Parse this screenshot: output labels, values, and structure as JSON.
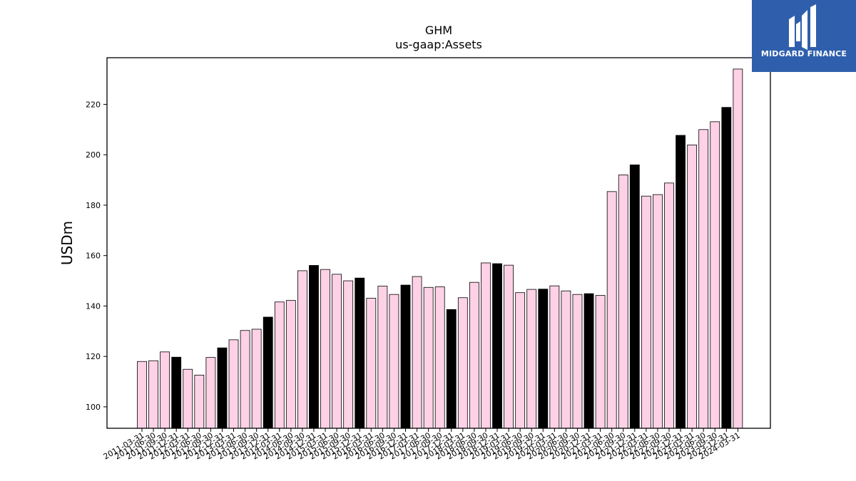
{
  "chart_data": {
    "type": "bar",
    "title": "GHM",
    "subtitle": "us-gaap:Assets",
    "xlabel": "",
    "ylabel": "USDm",
    "ylim": [
      91.5,
      238.5
    ],
    "yticks": [
      100,
      120,
      140,
      160,
      180,
      200,
      220
    ],
    "grid": false,
    "legend": "none",
    "colors": {
      "quarter": "#ffd1e6",
      "year_end": "#000000",
      "edge": "#000000"
    },
    "categories": [
      "2011-03-31",
      "2011-06-30",
      "2011-09-30",
      "2011-12-31",
      "2012-03-31",
      "2012-06-30",
      "2012-09-30",
      "2012-12-31",
      "2013-03-31",
      "2013-06-30",
      "2013-09-30",
      "2013-12-31",
      "2014-03-31",
      "2014-06-30",
      "2014-09-30",
      "2014-12-31",
      "2015-03-31",
      "2015-06-30",
      "2015-09-30",
      "2015-12-31",
      "2016-03-31",
      "2016-06-30",
      "2016-09-30",
      "2016-12-31",
      "2017-03-31",
      "2017-06-30",
      "2017-09-30",
      "2017-12-31",
      "2018-03-31",
      "2018-06-30",
      "2018-09-30",
      "2018-12-31",
      "2019-03-31",
      "2019-06-30",
      "2019-09-30",
      "2019-12-31",
      "2020-03-31",
      "2020-06-30",
      "2020-09-30",
      "2020-12-31",
      "2021-03-31",
      "2021-06-30",
      "2021-09-30",
      "2021-12-31",
      "2022-03-31",
      "2022-06-30",
      "2022-09-30",
      "2022-12-31",
      "2023-03-31",
      "2023-06-30",
      "2023-09-30",
      "2023-12-31",
      "2024-03-31"
    ],
    "values": [
      118.0,
      118.3,
      121.8,
      119.7,
      114.9,
      112.6,
      119.6,
      123.4,
      126.6,
      130.3,
      130.8,
      135.6,
      141.6,
      142.2,
      154.0,
      156.1,
      154.5,
      152.6,
      150.0,
      151.1,
      143.1,
      147.9,
      144.6,
      148.3,
      151.7,
      147.4,
      147.6,
      138.6,
      143.3,
      149.4,
      157.1,
      156.8,
      156.2,
      145.3,
      146.6,
      146.7,
      148.0,
      146.0,
      144.6,
      144.9,
      144.2,
      185.4,
      192.0,
      196.0,
      183.6,
      184.2,
      188.8,
      207.7,
      203.9,
      210.0,
      213.1,
      218.8,
      234.0
    ],
    "highlight_index_mod": 4,
    "highlight_offset": 3
  },
  "watermark": {
    "text": "MIDGARD FINANCE",
    "background": "#2f5fac"
  }
}
